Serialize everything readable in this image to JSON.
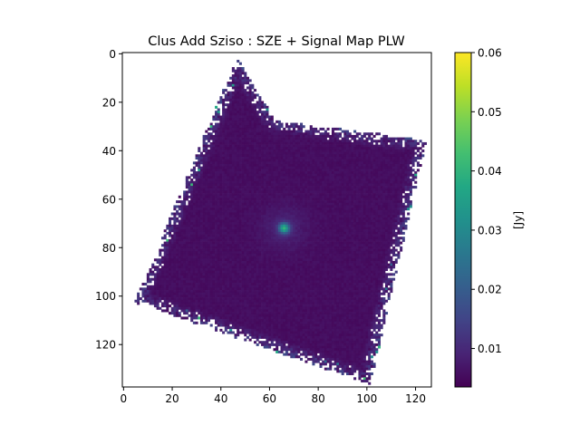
{
  "chart_data": {
    "type": "heatmap",
    "title": "Clus Add Sziso : SZE + Signal Map PLW",
    "xlabel": "",
    "ylabel": "",
    "x_ticks": [
      0,
      20,
      40,
      60,
      80,
      100,
      120
    ],
    "y_ticks": [
      0,
      20,
      40,
      60,
      80,
      100,
      120
    ],
    "xlim": [
      -0.5,
      126.5
    ],
    "ylim": [
      137.5,
      -0.5
    ],
    "grid": false,
    "colormap": "viridis",
    "colorbar": {
      "label": "[Jy]",
      "min": 0.0035,
      "max": 0.06,
      "ticks": [
        0.01,
        0.02,
        0.03,
        0.04,
        0.05,
        0.06
      ],
      "tick_labels": [
        "0.01",
        "0.02",
        "0.03",
        "0.04",
        "0.05",
        "0.06"
      ]
    },
    "map": {
      "footprint_corners": [
        [
          47,
          2
        ],
        [
          125,
          36
        ],
        [
          102,
          137
        ],
        [
          5,
          103
        ]
      ],
      "notch": [
        63,
        28
      ],
      "center_peak": {
        "x": 66,
        "y": 72,
        "value": 0.036
      },
      "background_value": 0.0055
    }
  }
}
